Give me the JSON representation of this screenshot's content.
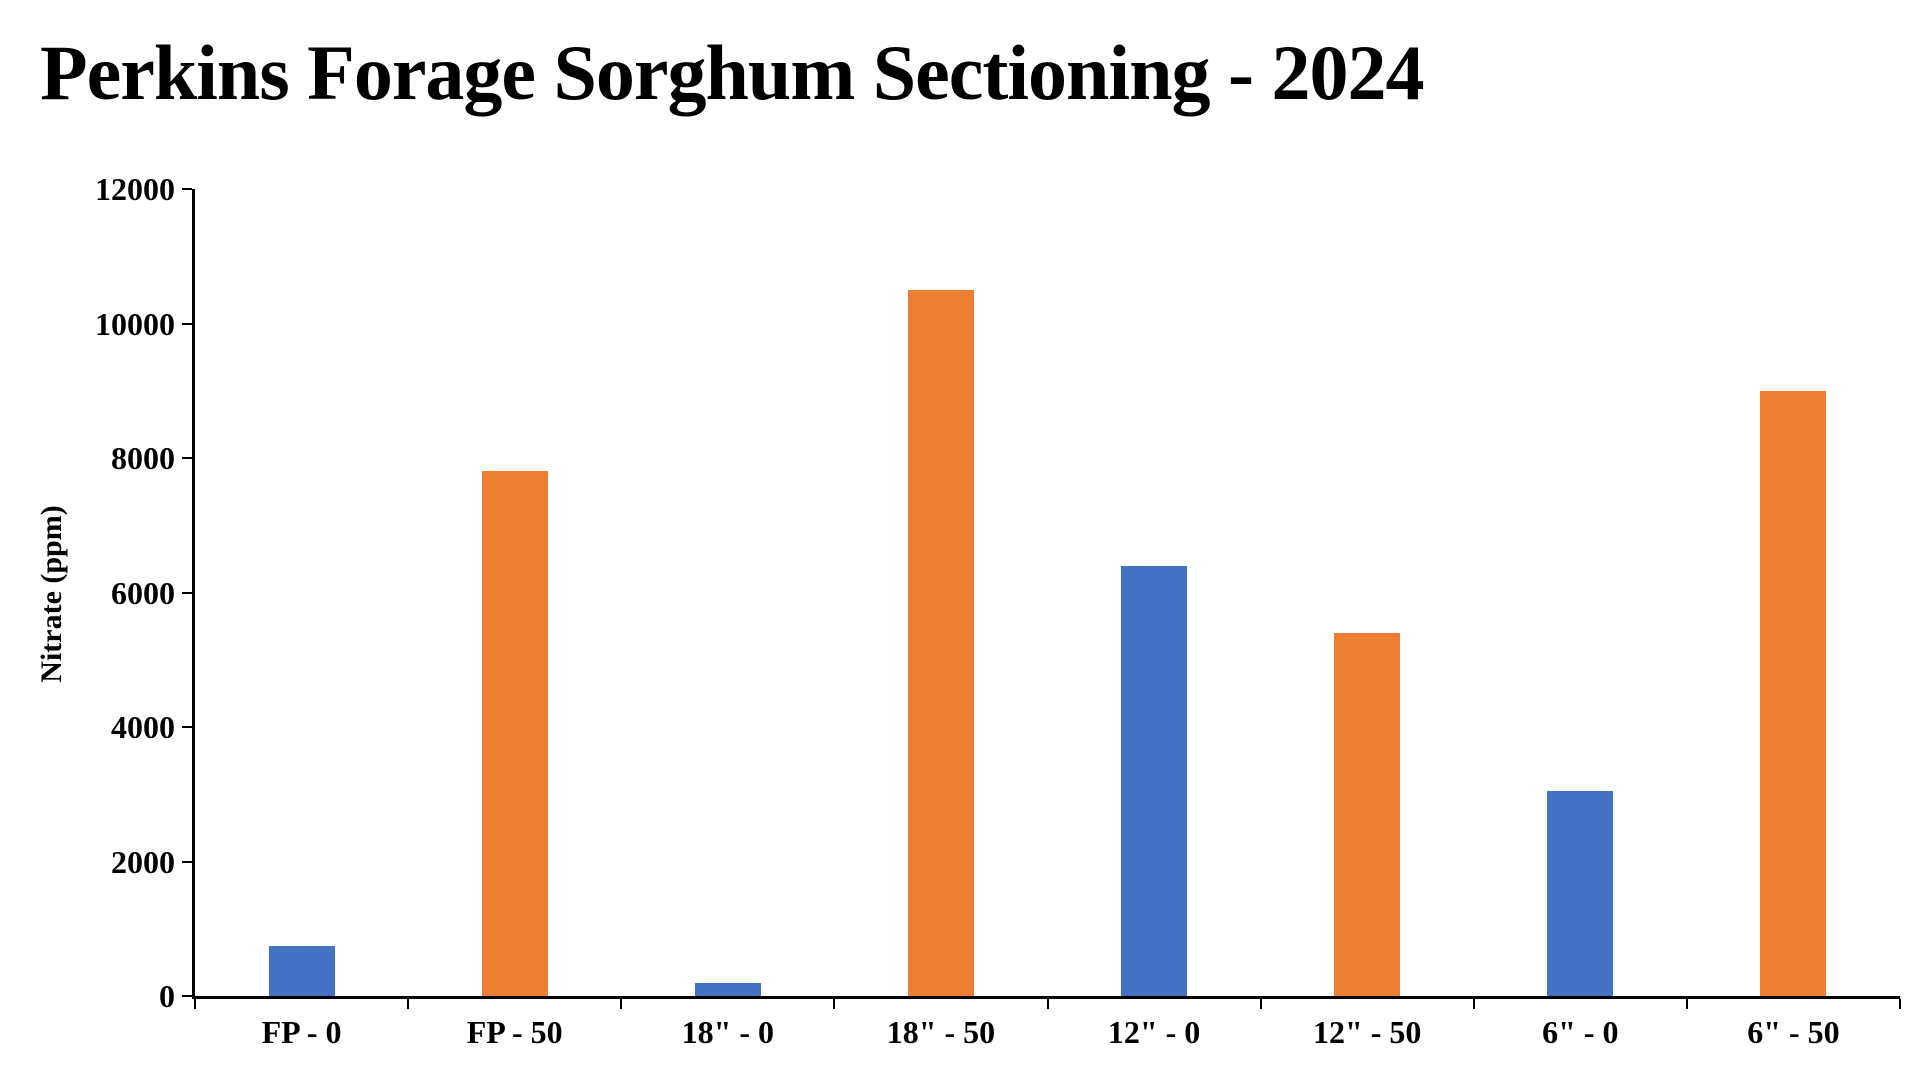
{
  "chart_data": {
    "type": "bar",
    "title": "Perkins Forage Sorghum Sectioning - 2024",
    "xlabel": "",
    "ylabel": "Nitrate (ppm)",
    "ylim": [
      0,
      12000
    ],
    "ytick_step": 2000,
    "grid": false,
    "legend_position": "none",
    "categories": [
      "FP - 0",
      "FP - 50",
      "18\" - 0",
      "18\" - 50",
      "12\" - 0",
      "12\" - 50",
      "6\" - 0",
      "6\" - 50"
    ],
    "values": [
      750,
      7800,
      200,
      10500,
      6400,
      5400,
      3050,
      9000
    ],
    "bar_colors": [
      "#4472C4",
      "#ED7D31",
      "#4472C4",
      "#ED7D31",
      "#4472C4",
      "#ED7D31",
      "#4472C4",
      "#ED7D31"
    ],
    "palette": {
      "blue": "#4472C4",
      "orange": "#ED7D31",
      "axis": "#000000",
      "background": "#FFFFFF",
      "text": "#000000"
    }
  }
}
